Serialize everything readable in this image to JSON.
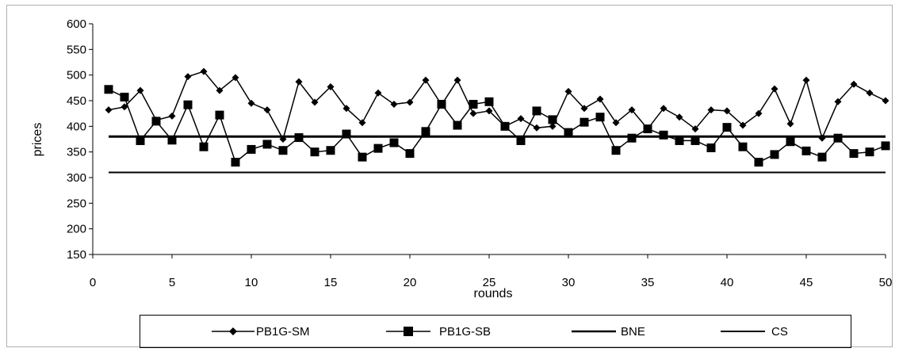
{
  "chart_data": {
    "type": "line",
    "xlabel": "rounds",
    "ylabel": "prices",
    "xlim": [
      0,
      50
    ],
    "ylim": [
      150,
      600
    ],
    "x_ticks": [
      0,
      5,
      10,
      15,
      20,
      25,
      30,
      35,
      40,
      45,
      50
    ],
    "y_ticks": [
      150,
      200,
      250,
      300,
      350,
      400,
      450,
      500,
      550,
      600
    ],
    "grid": false,
    "legend_position": "bottom",
    "x": [
      1,
      2,
      3,
      4,
      5,
      6,
      7,
      8,
      9,
      10,
      11,
      12,
      13,
      14,
      15,
      16,
      17,
      18,
      19,
      20,
      21,
      22,
      23,
      24,
      25,
      26,
      27,
      28,
      29,
      30,
      31,
      32,
      33,
      34,
      35,
      36,
      37,
      38,
      39,
      40,
      41,
      42,
      43,
      44,
      45,
      46,
      47,
      48,
      49,
      50
    ],
    "series": [
      {
        "name": "PB1G-SM",
        "marker": "diamond",
        "values": [
          432,
          438,
          470,
          412,
          420,
          497,
          507,
          470,
          495,
          445,
          432,
          375,
          487,
          447,
          477,
          435,
          407,
          465,
          443,
          447,
          490,
          442,
          490,
          425,
          430,
          400,
          415,
          397,
          400,
          468,
          435,
          453,
          407,
          432,
          395,
          435,
          418,
          395,
          432,
          430,
          402,
          425,
          473,
          405,
          490,
          377,
          448,
          482,
          465,
          450
        ]
      },
      {
        "name": "PB1G-SB",
        "marker": "square",
        "values": [
          472,
          457,
          372,
          410,
          373,
          442,
          360,
          422,
          330,
          355,
          365,
          353,
          378,
          350,
          353,
          385,
          340,
          357,
          368,
          347,
          390,
          443,
          402,
          443,
          448,
          400,
          372,
          430,
          413,
          388,
          408,
          418,
          353,
          377,
          395,
          383,
          372,
          372,
          358,
          398,
          360,
          330,
          345,
          370,
          352,
          340,
          377,
          347,
          350,
          362
        ]
      },
      {
        "name": "BNE",
        "style": "thick-line",
        "values": [
          380,
          380,
          380,
          380,
          380,
          380,
          380,
          380,
          380,
          380,
          380,
          380,
          380,
          380,
          380,
          380,
          380,
          380,
          380,
          380,
          380,
          380,
          380,
          380,
          380,
          380,
          380,
          380,
          380,
          380,
          380,
          380,
          380,
          380,
          380,
          380,
          380,
          380,
          380,
          380,
          380,
          380,
          380,
          380,
          380,
          380,
          380,
          380,
          380,
          380
        ]
      },
      {
        "name": "CS",
        "style": "thin-line",
        "values": [
          310,
          310,
          310,
          310,
          310,
          310,
          310,
          310,
          310,
          310,
          310,
          310,
          310,
          310,
          310,
          310,
          310,
          310,
          310,
          310,
          310,
          310,
          310,
          310,
          310,
          310,
          310,
          310,
          310,
          310,
          310,
          310,
          310,
          310,
          310,
          310,
          310,
          310,
          310,
          310,
          310,
          310,
          310,
          310,
          310,
          310,
          310,
          310,
          310,
          310
        ]
      }
    ]
  },
  "colors": {
    "line": "#000000",
    "frame": "#b0b0b0"
  }
}
